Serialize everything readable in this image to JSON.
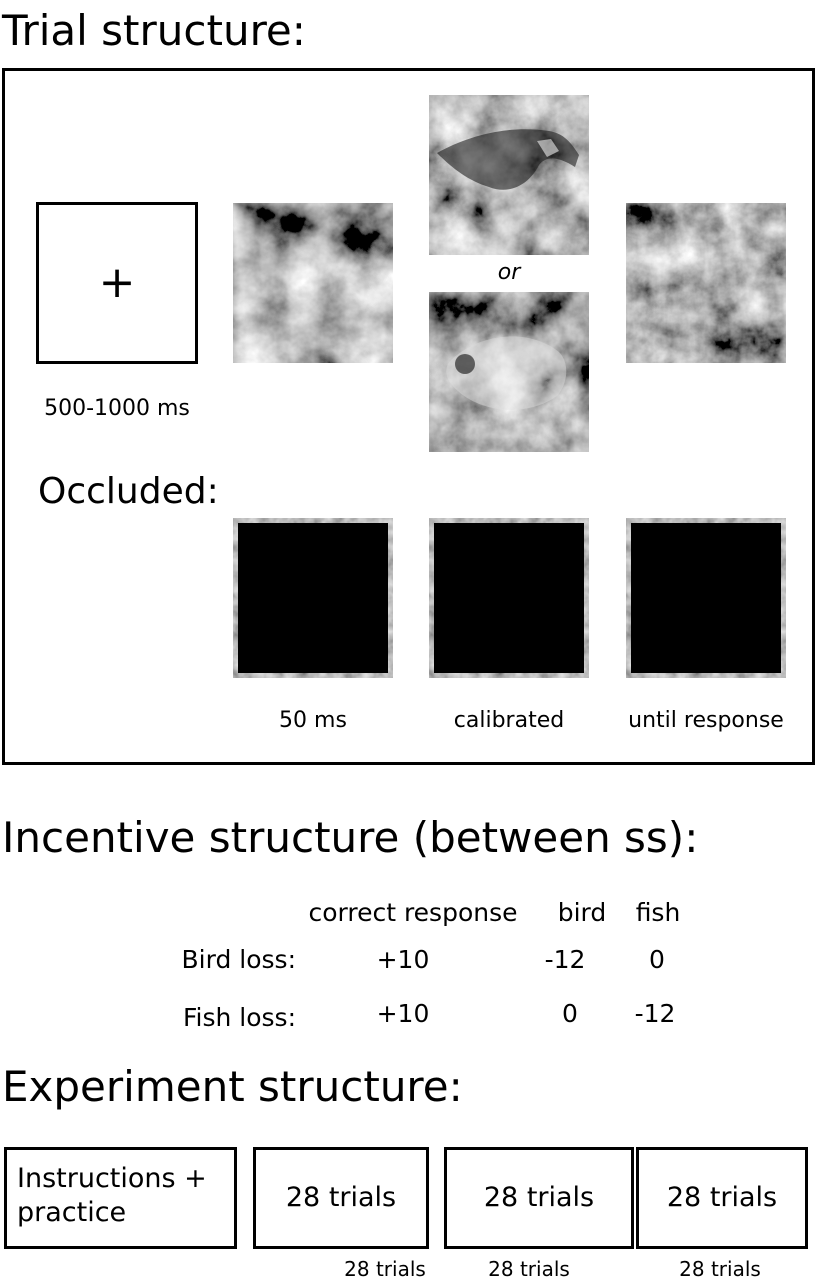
{
  "sections": {
    "trial_title": "Trial structure:",
    "incentive_title": "Incentive structure (between ss):",
    "experiment_title": "Experiment structure:"
  },
  "trial": {
    "fixation_symbol": "+",
    "fixation_duration": "500-1000 ms",
    "or_label": "or",
    "occluded_label": "Occluded:",
    "durations": [
      "50 ms",
      "calibrated",
      "until response"
    ]
  },
  "incentive": {
    "headers": [
      "correct response",
      "bird",
      "fish"
    ],
    "rows": [
      {
        "label": "Bird loss:",
        "values": [
          "+10",
          "-12",
          "0"
        ]
      },
      {
        "label": "Fish loss:",
        "values": [
          "+10",
          "0",
          "-12"
        ]
      }
    ]
  },
  "experiment": {
    "first_box_line1": "Instructions +",
    "first_box_line2": "practice",
    "blocks": [
      "28 trials",
      "28 trials",
      "28 trials"
    ],
    "below_labels": [
      "28 trials",
      "28 trials",
      "28 trials"
    ]
  },
  "colors": {
    "ink": "#000000",
    "background": "#ffffff",
    "noise_dark": "#2a2a2a",
    "noise_light": "#dcdcdc"
  }
}
